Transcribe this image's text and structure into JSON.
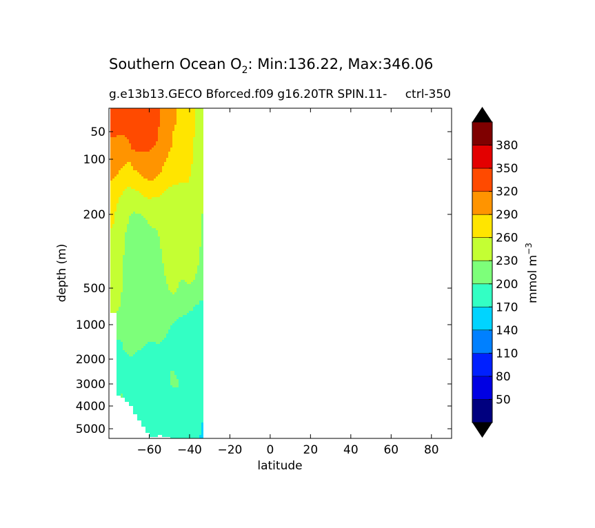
{
  "chart_data": {
    "type": "heatmap",
    "title_prefix": "Southern Ocean O",
    "title_sub": "2",
    "title_suffix": ": Min:136.22, Max:346.06",
    "subtitle_left": "g.e13b13.GECO Bforced.f09 g16.20TR SPIN.11-",
    "subtitle_right": "ctrl-350",
    "xlabel": "latitude",
    "ylabel": "depth (m)",
    "xlim": [
      -80,
      90
    ],
    "ylim": [
      5500,
      0
    ],
    "y_scale": "log",
    "x_ticks": [
      -60,
      -40,
      -20,
      0,
      20,
      40,
      60,
      80
    ],
    "x_tick_labels": [
      "−60",
      "−40",
      "−20",
      "0",
      "20",
      "40",
      "60",
      "80"
    ],
    "y_ticks": [
      50,
      100,
      200,
      500,
      1000,
      2000,
      3000,
      4000,
      5000
    ],
    "y_tick_labels": [
      "50",
      "100",
      "200",
      "500",
      "1000",
      "2000",
      "3000",
      "4000",
      "5000"
    ],
    "colorbar": {
      "label_base": "mmol m",
      "label_exp": "−3",
      "levels": [
        20,
        50,
        80,
        110,
        140,
        170,
        200,
        230,
        260,
        290,
        320,
        350,
        380,
        410
      ],
      "tick_labels": [
        "50",
        "80",
        "110",
        "140",
        "170",
        "200",
        "230",
        "260",
        "290",
        "320",
        "350",
        "380"
      ],
      "colors": [
        "#00007f",
        "#0000e3",
        "#0020ff",
        "#0080ff",
        "#00d4ff",
        "#33ffc4",
        "#7dff7a",
        "#c4ff33",
        "#ffe500",
        "#ff9400",
        "#ff4a00",
        "#e30000",
        "#7f0000"
      ],
      "extend": "both",
      "under_color": "#000000",
      "over_color": "#000000"
    },
    "o2_field": {
      "lat": [
        -78,
        -76,
        -74,
        -72,
        -70,
        -68,
        -66,
        -64,
        -62,
        -60,
        -58,
        -56,
        -54,
        -52,
        -50,
        -48,
        -46,
        -44,
        -42,
        -40,
        -38,
        -36,
        -34
      ],
      "depth": [
        30,
        50,
        75,
        100,
        130,
        160,
        200,
        280,
        400,
        500,
        700,
        1000,
        1500,
        2000,
        2500,
        3000,
        3500,
        4000,
        4500,
        5000,
        5500
      ],
      "bottom_depth": [
        800,
        3500,
        3600,
        3800,
        4000,
        4300,
        4600,
        4900,
        5200,
        5400,
        5400,
        5300,
        5400,
        5400,
        5500,
        5500,
        5500,
        5500,
        5500,
        5500,
        5500,
        5500,
        5500
      ],
      "values": [
        [
          325,
          325,
          325,
          328,
          332,
          335,
          335,
          334,
          333,
          332,
          330,
          325,
          315,
          300,
          295,
          292,
          290,
          285,
          280,
          272,
          262,
          252,
          240
        ],
        [
          322,
          322,
          322,
          324,
          326,
          330,
          332,
          331,
          330,
          329,
          326,
          322,
          315,
          300,
          293,
          290,
          287,
          282,
          278,
          270,
          262,
          252,
          240
        ],
        [
          315,
          315,
          312,
          310,
          315,
          325,
          326,
          325,
          324,
          323,
          320,
          318,
          305,
          297,
          292,
          288,
          285,
          280,
          276,
          268,
          260,
          250,
          238
        ],
        [
          305,
          303,
          300,
          295,
          292,
          302,
          305,
          308,
          310,
          312,
          310,
          305,
          300,
          292,
          286,
          282,
          280,
          276,
          272,
          266,
          258,
          248,
          236
        ],
        [
          290,
          285,
          280,
          272,
          270,
          275,
          280,
          285,
          288,
          292,
          290,
          287,
          282,
          275,
          270,
          266,
          264,
          262,
          262,
          260,
          252,
          244,
          234
        ],
        [
          265,
          262,
          258,
          250,
          245,
          245,
          250,
          256,
          260,
          264,
          262,
          260,
          258,
          252,
          248,
          245,
          246,
          250,
          252,
          254,
          248,
          240,
          232
        ],
        [
          262,
          258,
          252,
          240,
          232,
          228,
          228,
          230,
          232,
          236,
          236,
          236,
          240,
          242,
          240,
          238,
          238,
          240,
          245,
          250,
          246,
          238,
          230
        ],
        [
          258,
          252,
          245,
          228,
          218,
          215,
          215,
          217,
          218,
          222,
          224,
          226,
          232,
          238,
          240,
          238,
          236,
          236,
          240,
          245,
          242,
          236,
          228
        ],
        [
          255,
          248,
          240,
          220,
          212,
          210,
          210,
          212,
          214,
          216,
          218,
          220,
          226,
          232,
          236,
          236,
          234,
          234,
          236,
          240,
          236,
          230,
          224
        ],
        [
          252,
          245,
          235,
          215,
          208,
          206,
          206,
          208,
          210,
          212,
          214,
          216,
          220,
          226,
          232,
          236,
          230,
          226,
          226,
          228,
          226,
          222,
          216
        ],
        [
          252,
          240,
          226,
          212,
          206,
          204,
          204,
          205,
          206,
          208,
          210,
          212,
          214,
          218,
          220,
          218,
          214,
          210,
          208,
          206,
          202,
          198,
          192
        ],
        [
          252,
          212,
          208,
          205,
          203,
          202,
          202,
          202,
          203,
          204,
          205,
          206,
          205,
          204,
          202,
          198,
          194,
          192,
          190,
          188,
          186,
          184,
          180
        ],
        [
          252,
          196,
          198,
          204,
          207,
          206,
          204,
          202,
          200,
          199,
          199,
          200,
          199,
          198,
          194,
          190,
          186,
          184,
          183,
          183,
          182,
          180,
          172
        ],
        [
          252,
          190,
          194,
          196,
          198,
          198,
          196,
          194,
          192,
          190,
          193,
          196,
          194,
          192,
          190,
          186,
          184,
          183,
          182,
          182,
          181,
          180,
          176
        ],
        [
          252,
          186,
          188,
          190,
          190,
          188,
          186,
          186,
          186,
          186,
          188,
          190,
          194,
          198,
          200,
          202,
          194,
          186,
          183,
          182,
          181,
          180,
          178
        ],
        [
          252,
          186,
          186,
          186,
          186,
          186,
          185,
          185,
          185,
          185,
          185,
          186,
          188,
          194,
          198,
          206,
          204,
          190,
          184,
          182,
          181,
          180,
          178
        ],
        [
          252,
          190,
          206,
          196,
          186,
          186,
          186,
          185,
          185,
          185,
          185,
          185,
          186,
          187,
          188,
          188,
          186,
          184,
          183,
          182,
          181,
          180,
          178
        ],
        [
          252,
          202,
          208,
          200,
          186,
          186,
          186,
          185,
          185,
          185,
          185,
          185,
          185,
          185,
          185,
          184,
          184,
          183,
          182,
          182,
          181,
          180,
          176
        ],
        [
          252,
          186,
          186,
          186,
          186,
          186,
          186,
          185,
          185,
          185,
          185,
          185,
          185,
          185,
          185,
          184,
          183,
          183,
          182,
          182,
          181,
          180,
          174
        ],
        [
          252,
          186,
          186,
          186,
          186,
          186,
          186,
          185,
          185,
          185,
          185,
          185,
          185,
          185,
          185,
          184,
          183,
          182,
          182,
          182,
          181,
          180,
          166
        ],
        [
          252,
          186,
          186,
          186,
          186,
          186,
          186,
          185,
          185,
          185,
          185,
          185,
          185,
          185,
          185,
          184,
          183,
          182,
          182,
          182,
          181,
          180,
          164
        ]
      ]
    }
  }
}
